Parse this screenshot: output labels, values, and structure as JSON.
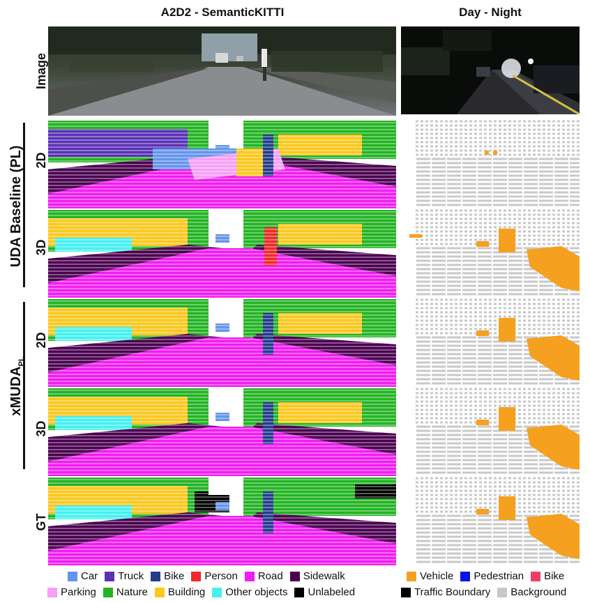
{
  "columns": {
    "left_title": "A2D2 - SemanticKITTI",
    "right_title": "Day - Night"
  },
  "rows": {
    "image": "Image",
    "twod": "2D",
    "threed": "3D",
    "gt": "GT"
  },
  "groups": {
    "baseline": "UDA Baseline (PL)",
    "xmuda_main": "xMUDA",
    "xmuda_sub": "PL"
  },
  "legend_left": [
    {
      "label": "Car",
      "color": "#6495ED"
    },
    {
      "label": "Truck",
      "color": "#5A32B4"
    },
    {
      "label": "Bike",
      "color": "#233C8C"
    },
    {
      "label": "Person",
      "color": "#F02828"
    },
    {
      "label": "Road",
      "color": "#F01EF0"
    },
    {
      "label": "Sidewalk",
      "color": "#4B0050"
    },
    {
      "label": "Parking",
      "color": "#F5A0F5"
    },
    {
      "label": "Nature",
      "color": "#23B423"
    },
    {
      "label": "Building",
      "color": "#FAC81E"
    },
    {
      "label": "Other objects",
      "color": "#46F0F0"
    },
    {
      "label": "Unlabeled",
      "color": "#000000"
    }
  ],
  "legend_right": [
    {
      "label": "Vehicle",
      "color": "#F5A01E"
    },
    {
      "label": "Pedestrian",
      "color": "#0A14E6"
    },
    {
      "label": "Bike",
      "color": "#F03C64"
    },
    {
      "label": "Traffic Boundary",
      "color": "#000000"
    },
    {
      "label": "Background",
      "color": "#C8C8C8"
    }
  ]
}
